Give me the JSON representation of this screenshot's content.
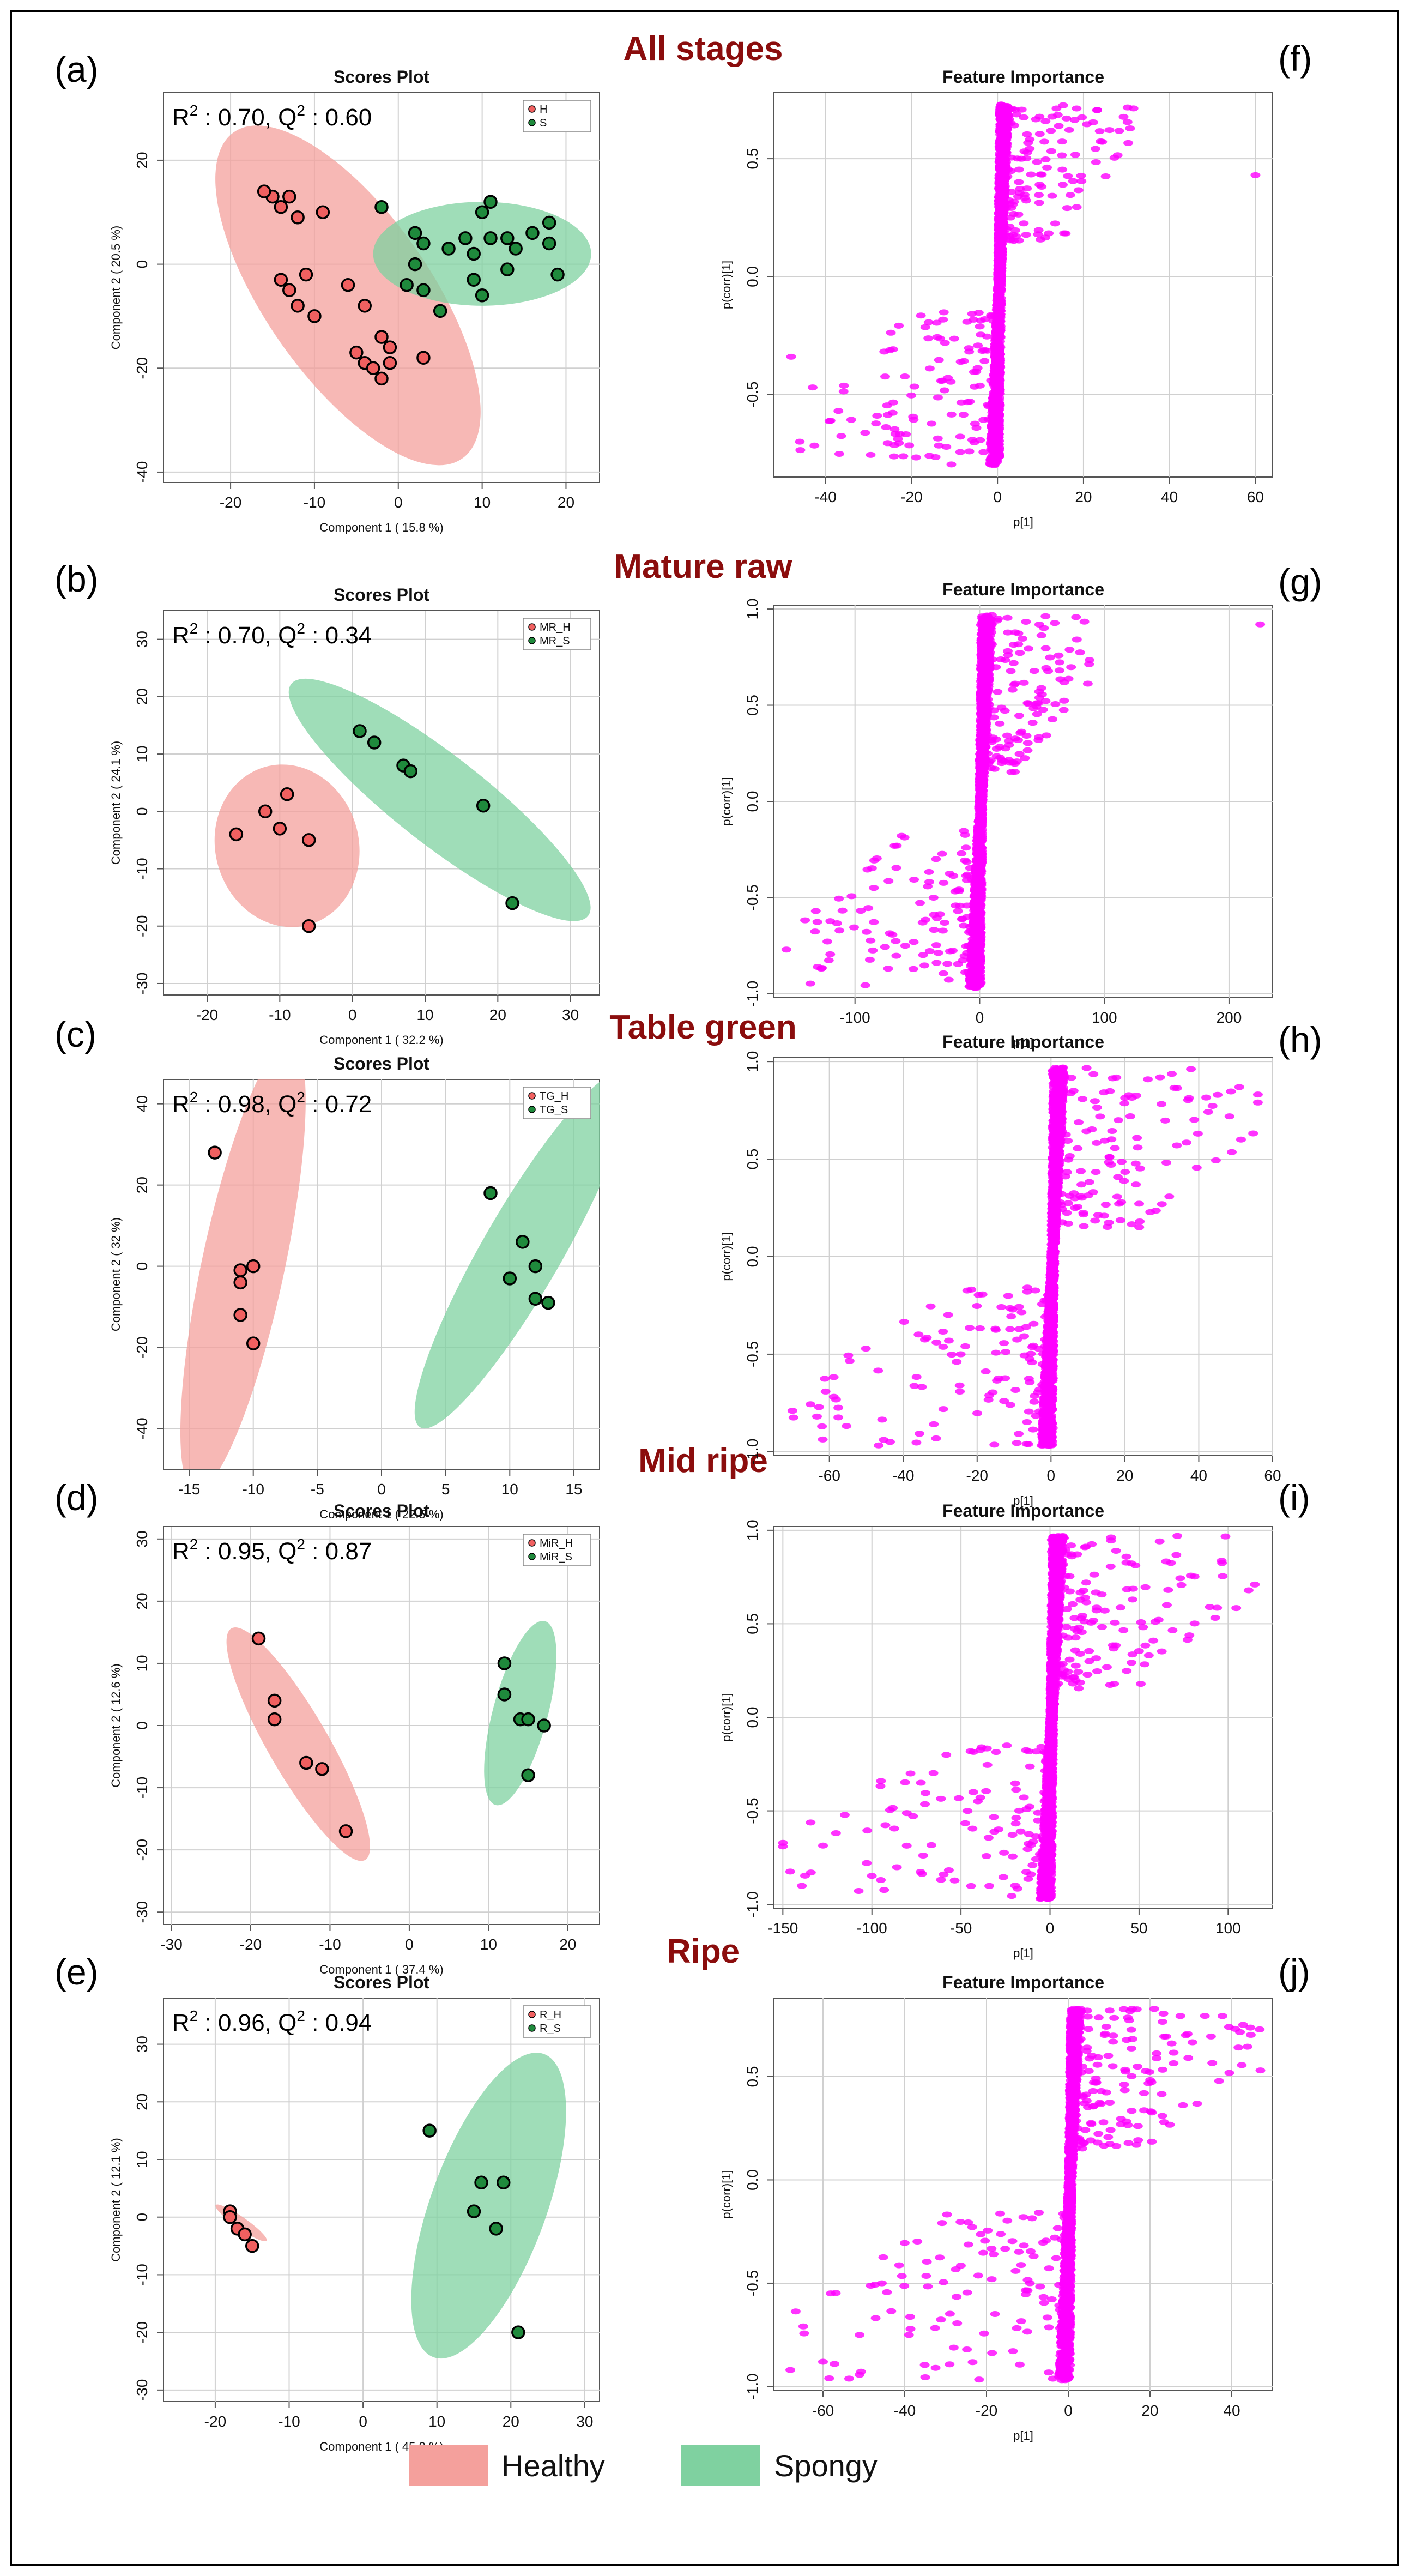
{
  "colors": {
    "healthy_fill": "#f4a09c",
    "healthy_point": "#f06060",
    "spongy_fill": "#7fd1a0",
    "spongy_point": "#1f8a3c",
    "stage_title": "#8b0d0d",
    "feature_point": "#ff00ff",
    "grid": "#d0d0d0"
  },
  "figure_legend": {
    "healthy_label": "Healthy",
    "spongy_label": "Spongy"
  },
  "chart_data": [
    {
      "panel": "(a)",
      "type": "scatter",
      "stage_title": "All stages",
      "title": "Scores Plot",
      "stat_label": "R² : 0.70, Q² : 0.60",
      "stat_R2": "0.70",
      "stat_Q2": "0.60",
      "xlabel": "Component 1 ( 15.8 %)",
      "ylabel": "Component 2 ( 20.5 %)",
      "xlim": [
        -28,
        24
      ],
      "ylim": [
        -42,
        33
      ],
      "xticks": [
        -20,
        -10,
        0,
        10,
        20
      ],
      "yticks": [
        -40,
        -20,
        0,
        20
      ],
      "legend": [
        "H",
        "S"
      ],
      "series": [
        {
          "name": "H",
          "group": "healthy",
          "ellipse": {
            "cx": -6,
            "cy": -6,
            "rx": 31,
            "ry": 11,
            "angle": -55
          },
          "points": [
            [
              -15,
              13
            ],
            [
              -14,
              11
            ],
            [
              -13,
              13
            ],
            [
              -16,
              14
            ],
            [
              -12,
              9
            ],
            [
              -9,
              10
            ],
            [
              -14,
              -3
            ],
            [
              -13,
              -5
            ],
            [
              -11,
              -2
            ],
            [
              -12,
              -8
            ],
            [
              -10,
              -10
            ],
            [
              -6,
              -4
            ],
            [
              -4,
              -8
            ],
            [
              -5,
              -17
            ],
            [
              -4,
              -19
            ],
            [
              -3,
              -20
            ],
            [
              -2,
              -14
            ],
            [
              -1,
              -16
            ],
            [
              -1,
              -19
            ],
            [
              -2,
              -22
            ],
            [
              3,
              -18
            ]
          ]
        },
        {
          "name": "S",
          "group": "spongy",
          "ellipse": {
            "cx": 10,
            "cy": 2,
            "rx": 13,
            "ry": 10,
            "angle": 0
          },
          "points": [
            [
              -2,
              11
            ],
            [
              2,
              6
            ],
            [
              3,
              4
            ],
            [
              2,
              0
            ],
            [
              1,
              -4
            ],
            [
              3,
              -5
            ],
            [
              5,
              -9
            ],
            [
              6,
              3
            ],
            [
              8,
              5
            ],
            [
              9,
              2
            ],
            [
              9,
              -3
            ],
            [
              10,
              -6
            ],
            [
              11,
              5
            ],
            [
              10,
              10
            ],
            [
              11,
              12
            ],
            [
              13,
              5
            ],
            [
              14,
              3
            ],
            [
              16,
              6
            ],
            [
              18,
              8
            ],
            [
              18,
              4
            ],
            [
              19,
              -2
            ],
            [
              13,
              -1
            ]
          ]
        }
      ]
    },
    {
      "panel": "(b)",
      "type": "scatter",
      "stage_title": "Mature raw",
      "title": "Scores Plot",
      "stat_label": "R² : 0.70, Q² : 0.34",
      "stat_R2": "0.70",
      "stat_Q2": "0.34",
      "xlabel": "Component 1 ( 32.2 %)",
      "ylabel": "Component 2 ( 24.1 %)",
      "xlim": [
        -26,
        34
      ],
      "ylim": [
        -32,
        35
      ],
      "xticks": [
        -20,
        -10,
        0,
        10,
        20,
        30
      ],
      "yticks": [
        -30,
        -20,
        -10,
        0,
        10,
        20,
        30
      ],
      "legend": [
        "MR_H",
        "MR_S"
      ],
      "series": [
        {
          "name": "MR_H",
          "group": "healthy",
          "ellipse": {
            "cx": -9,
            "cy": -6,
            "rx": 14,
            "ry": 10,
            "angle": -75
          },
          "points": [
            [
              -16,
              -4
            ],
            [
              -12,
              0
            ],
            [
              -10,
              -3
            ],
            [
              -9,
              3
            ],
            [
              -6,
              -5
            ],
            [
              -6,
              -20
            ]
          ]
        },
        {
          "name": "MR_S",
          "group": "spongy",
          "ellipse": {
            "cx": 12,
            "cy": 2,
            "rx": 28,
            "ry": 7,
            "angle": -38
          },
          "points": [
            [
              1,
              14
            ],
            [
              3,
              12
            ],
            [
              7,
              8
            ],
            [
              8,
              7
            ],
            [
              18,
              1
            ],
            [
              22,
              -16
            ]
          ]
        }
      ]
    },
    {
      "panel": "(c)",
      "type": "scatter",
      "stage_title": "Table green",
      "title": "Scores Plot",
      "stat_label": "R² : 0.98, Q² : 0.72",
      "stat_R2": "0.98",
      "stat_Q2": "0.72",
      "xlabel": "Component 1 ( 22.5 %)",
      "ylabel": "Component 2 ( 32 %)",
      "xlim": [
        -17,
        17
      ],
      "ylim": [
        -50,
        46
      ],
      "xticks": [
        -15,
        -10,
        -5,
        0,
        5,
        10,
        15
      ],
      "yticks": [
        -40,
        -20,
        0,
        20,
        40
      ],
      "legend": [
        "TG_H",
        "TG_S"
      ],
      "series": [
        {
          "name": "TG_H",
          "group": "healthy",
          "ellipse": {
            "cx": -10.8,
            "cy": 0,
            "rx": 3.3,
            "ry": 48,
            "angle": -12
          },
          "points": [
            [
              -13,
              28
            ],
            [
              -11,
              -1
            ],
            [
              -10,
              0
            ],
            [
              -11,
              -4
            ],
            [
              -11,
              -12
            ],
            [
              -10,
              -19
            ]
          ]
        },
        {
          "name": "TG_S",
          "group": "spongy",
          "ellipse": {
            "cx": 11,
            "cy": 4,
            "rx": 3.5,
            "ry": 28,
            "angle": -30
          },
          "points": [
            [
              8.5,
              18
            ],
            [
              11,
              6
            ],
            [
              12,
              0
            ],
            [
              10,
              -3
            ],
            [
              12,
              -8
            ],
            [
              13,
              -9
            ]
          ]
        }
      ]
    },
    {
      "panel": "(d)",
      "type": "scatter",
      "stage_title": "Mid ripe",
      "title": "Scores Plot",
      "stat_label": "R² : 0.95, Q² : 0.87",
      "stat_R2": "0.95",
      "stat_Q2": "0.87",
      "xlabel": "Component 1 ( 37.4 %)",
      "ylabel": "Component 2 ( 12.6 %)",
      "xlim": [
        -31,
        24
      ],
      "ylim": [
        -32,
        32
      ],
      "xticks": [
        -30,
        -20,
        -10,
        0,
        10,
        20
      ],
      "yticks": [
        -30,
        -20,
        -10,
        0,
        10,
        20,
        30
      ],
      "legend": [
        "MiR_H",
        "MiR_S"
      ],
      "series": [
        {
          "name": "MiR_H",
          "group": "healthy",
          "ellipse": {
            "cx": -14,
            "cy": -3,
            "rx": 20,
            "ry": 4,
            "angle": -60
          },
          "points": [
            [
              -19,
              14
            ],
            [
              -17,
              4
            ],
            [
              -17,
              1
            ],
            [
              -13,
              -6
            ],
            [
              -11,
              -7
            ],
            [
              -8,
              -17
            ]
          ]
        },
        {
          "name": "MiR_S",
          "group": "spongy",
          "ellipse": {
            "cx": 14,
            "cy": 2,
            "rx": 3.5,
            "ry": 15,
            "angle": -15
          },
          "points": [
            [
              12,
              10
            ],
            [
              12,
              5
            ],
            [
              14,
              1
            ],
            [
              15,
              1
            ],
            [
              17,
              0
            ],
            [
              15,
              -8
            ]
          ]
        }
      ]
    },
    {
      "panel": "(e)",
      "type": "scatter",
      "stage_title": "Ripe",
      "title": "Scores Plot",
      "stat_label": "R² : 0.96, Q² : 0.94",
      "stat_R2": "0.96",
      "stat_Q2": "0.94",
      "xlabel": "Component 1 ( 45.8 %)",
      "ylabel": "Component 2 ( 12.1 %)",
      "xlim": [
        -27,
        32
      ],
      "ylim": [
        -32,
        38
      ],
      "xticks": [
        -20,
        -10,
        0,
        10,
        20,
        30
      ],
      "yticks": [
        -30,
        -20,
        -10,
        0,
        10,
        20,
        30
      ],
      "legend": [
        "R_H",
        "R_S"
      ],
      "series": [
        {
          "name": "R_H",
          "group": "healthy",
          "ellipse": {
            "cx": -16.5,
            "cy": -1,
            "rx": 4.5,
            "ry": 0.9,
            "angle": -35
          },
          "points": [
            [
              -18,
              1
            ],
            [
              -18,
              0
            ],
            [
              -17,
              -2
            ],
            [
              -16,
              -3
            ],
            [
              -15,
              -5
            ]
          ]
        },
        {
          "name": "R_S",
          "group": "spongy",
          "ellipse": {
            "cx": 17,
            "cy": 2,
            "rx": 8,
            "ry": 27,
            "angle": -20
          },
          "points": [
            [
              9,
              15
            ],
            [
              16,
              6
            ],
            [
              19,
              6
            ],
            [
              15,
              1
            ],
            [
              18,
              -2
            ],
            [
              21,
              -20
            ]
          ]
        }
      ]
    },
    {
      "panel": "(f)",
      "type": "scatter",
      "title": "Feature Importance",
      "xlabel": "p[1]",
      "ylabel": "p(corr)[1]",
      "xlim": [
        -52,
        64
      ],
      "ylim": [
        -0.85,
        0.78
      ],
      "xticks": [
        -40,
        -20,
        0,
        20,
        40,
        60
      ],
      "yticks": [
        -0.5,
        0.0,
        0.5
      ],
      "ytick_labels": [
        "-0.5",
        "0.0",
        "0.5"
      ],
      "feature_shape": {
        "core_x": 0.5,
        "pos_max_x": 35,
        "neg_min_x": -48,
        "outliers": [
          [
            60,
            0.43
          ],
          [
            -48,
            -0.34
          ],
          [
            -46,
            -0.7
          ],
          [
            -43,
            -0.47
          ]
        ]
      }
    },
    {
      "panel": "(g)",
      "type": "scatter",
      "title": "Feature Importance",
      "xlabel": "p[1]",
      "ylabel": "p(corr)[1]",
      "xlim": [
        -165,
        235
      ],
      "ylim": [
        -1.02,
        1.02
      ],
      "xticks": [
        -100,
        0,
        100,
        200
      ],
      "yticks": [
        -1.0,
        -0.5,
        0.0,
        0.5,
        1.0
      ],
      "ytick_labels": [
        "-1.0",
        "-0.5",
        "0.0",
        "0.5",
        "1.0"
      ],
      "feature_shape": {
        "core_x": 1,
        "pos_max_x": 90,
        "neg_min_x": -150,
        "outliers": [
          [
            225,
            0.92
          ],
          [
            -155,
            -0.77
          ],
          [
            -130,
            -0.86
          ]
        ]
      }
    },
    {
      "panel": "(h)",
      "type": "scatter",
      "title": "Feature Importance",
      "xlabel": "p[1]",
      "ylabel": "p(corr)[1]",
      "xlim": [
        -75,
        60
      ],
      "ylim": [
        -1.02,
        1.02
      ],
      "xticks": [
        -60,
        -40,
        -20,
        0,
        20,
        40,
        60
      ],
      "yticks": [
        -1.0,
        -0.5,
        0.0,
        0.5,
        1.0
      ],
      "ytick_labels": [
        "-1.0",
        "-0.5",
        "0.0",
        "0.5",
        "1.0"
      ],
      "feature_shape": {
        "core_x": 0.5,
        "pos_max_x": 57,
        "neg_min_x": -70,
        "outliers": [
          [
            56,
            0.79
          ],
          [
            -70,
            -0.79
          ],
          [
            -62,
            -0.87
          ]
        ]
      }
    },
    {
      "panel": "(i)",
      "type": "scatter",
      "title": "Feature Importance",
      "xlabel": "p[1]",
      "ylabel": "p(corr)[1]",
      "xlim": [
        -155,
        125
      ],
      "ylim": [
        -1.02,
        1.02
      ],
      "xticks": [
        -150,
        -100,
        -50,
        0,
        50,
        100
      ],
      "yticks": [
        -1.0,
        -0.5,
        0.0,
        0.5,
        1.0
      ],
      "ytick_labels": [
        "-1.0",
        "-0.5",
        "0.0",
        "0.5",
        "1.0"
      ],
      "feature_shape": {
        "core_x": 1,
        "pos_max_x": 115,
        "neg_min_x": -150,
        "outliers": [
          [
            115,
            0.71
          ],
          [
            -150,
            -0.69
          ],
          [
            -95,
            -0.87
          ]
        ]
      }
    },
    {
      "panel": "(j)",
      "type": "scatter",
      "title": "Feature Importance",
      "xlabel": "p[1]",
      "ylabel": "p(corr)[1]",
      "xlim": [
        -72,
        50
      ],
      "ylim": [
        -1.02,
        0.88
      ],
      "xticks": [
        -60,
        -40,
        -20,
        0,
        20,
        40
      ],
      "yticks": [
        -1.0,
        -0.5,
        0.0,
        0.5
      ],
      "ytick_labels": [
        "-1.0",
        "-0.5",
        "0.0",
        "0.5"
      ],
      "feature_shape": {
        "core_x": 0.5,
        "pos_max_x": 47,
        "neg_min_x": -68,
        "outliers": [
          [
            47,
            0.53
          ],
          [
            -68,
            -0.92
          ],
          [
            -60,
            -0.88
          ]
        ]
      }
    }
  ]
}
